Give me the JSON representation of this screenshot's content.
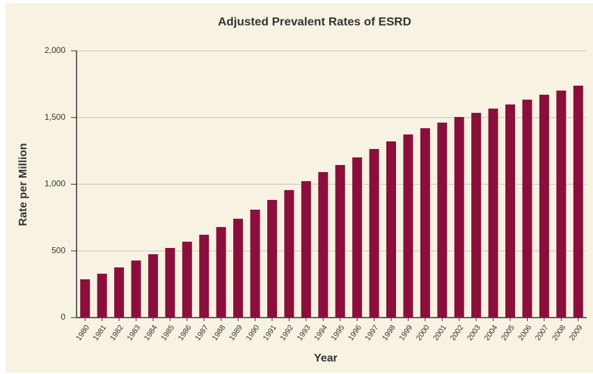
{
  "chart_data": {
    "type": "bar",
    "title": "Adjusted Prevalent Rates of ESRD",
    "x_label": "Year",
    "y_label": "Rate per Million",
    "categories": [
      "1980",
      "1981",
      "1982",
      "1983",
      "1984",
      "1985",
      "1986",
      "1987",
      "1988",
      "1989",
      "1990",
      "1991",
      "1992",
      "1993",
      "1994",
      "1995",
      "1996",
      "1997",
      "1998",
      "1999",
      "2000",
      "2001",
      "2002",
      "2003",
      "2004",
      "2005",
      "2006",
      "2007",
      "2008",
      "2009"
    ],
    "values": [
      287,
      329,
      376,
      428,
      475,
      522,
      569,
      621,
      679,
      741,
      809,
      882,
      956,
      1023,
      1091,
      1144,
      1201,
      1264,
      1321,
      1373,
      1420,
      1462,
      1504,
      1535,
      1567,
      1598,
      1634,
      1671,
      1702,
      1739
    ],
    "color": "#8a0f3c",
    "ylim": [
      0,
      2000
    ],
    "yticks": [
      0,
      500,
      {
        "value": 1000,
        "label": "1,000"
      },
      {
        "value": 1500,
        "label": "1,500"
      },
      {
        "value": 2000,
        "label": "2,000"
      }
    ],
    "grid": true
  }
}
